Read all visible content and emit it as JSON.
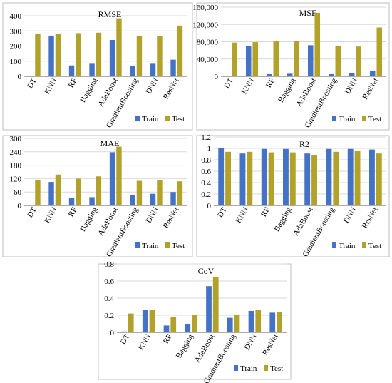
{
  "colors": {
    "train": "#4472C4",
    "test": "#B3A22A",
    "grid": "#d9d9d9",
    "axis": "#595959"
  },
  "legend": {
    "train": "Train",
    "test": "Test"
  },
  "chart_data": [
    {
      "type": "bar",
      "title": "RMSE",
      "categories": [
        "DT",
        "KNN",
        "RF",
        "Bagging",
        "AdaBoost",
        "GradientBoosting",
        "DNN",
        "ResNet"
      ],
      "series": [
        {
          "name": "Train",
          "values": [
            0,
            268,
            72,
            83,
            240,
            68,
            83,
            110
          ]
        },
        {
          "name": "Test",
          "values": [
            280,
            281,
            285,
            288,
            383,
            268,
            265,
            335
          ]
        }
      ],
      "ylim": [
        0,
        400
      ],
      "yticks": [
        "0",
        "100",
        "200",
        "300",
        "400"
      ],
      "grid": true,
      "legend_position": "bottom-right"
    },
    {
      "type": "bar",
      "title": "MSE",
      "categories": [
        "DT",
        "KNN",
        "RF",
        "Bagging",
        "AdaBoost",
        "GradientBoosting",
        "DNN",
        "ResNet"
      ],
      "series": [
        {
          "name": "Train",
          "values": [
            0,
            71000,
            5000,
            6000,
            72000,
            5000,
            7000,
            12000
          ]
        },
        {
          "name": "Test",
          "values": [
            78000,
            79000,
            81000,
            82000,
            147000,
            71000,
            69000,
            113000
          ]
        }
      ],
      "ylim": [
        0,
        160000
      ],
      "yticks": [
        "0",
        "40,000",
        "80,000",
        "120,000",
        "160,000"
      ],
      "grid": true,
      "legend_position": "bottom-right"
    },
    {
      "type": "bar",
      "title": "MAE",
      "categories": [
        "DT",
        "KNN",
        "RF",
        "Bagging",
        "AdaBoost",
        "GradientBoosting",
        "DNN",
        "ResNet"
      ],
      "series": [
        {
          "name": "Train",
          "values": [
            0,
            105,
            33,
            37,
            238,
            46,
            52,
            60
          ]
        },
        {
          "name": "Test",
          "values": [
            115,
            138,
            120,
            130,
            263,
            110,
            112,
            108
          ]
        }
      ],
      "ylim": [
        0,
        300
      ],
      "yticks": [
        "0",
        "60",
        "120",
        "180",
        "240",
        "300"
      ],
      "grid": true,
      "legend_position": "bottom-right"
    },
    {
      "type": "bar",
      "title": "R2",
      "categories": [
        "DT",
        "KNN",
        "RF",
        "Bagging",
        "AdaBoost",
        "GradientBoosting",
        "DNN",
        "ResNet"
      ],
      "series": [
        {
          "name": "Train",
          "values": [
            1.0,
            0.91,
            0.99,
            0.99,
            0.91,
            0.99,
            0.99,
            0.98
          ]
        },
        {
          "name": "Test",
          "values": [
            0.94,
            0.94,
            0.93,
            0.93,
            0.88,
            0.94,
            0.95,
            0.91
          ]
        }
      ],
      "ylim": [
        0,
        1.2
      ],
      "yticks": [
        "0",
        "0.2",
        "0.4",
        "0.6",
        "0.8",
        "1",
        "1.2"
      ],
      "grid": true,
      "legend_position": "bottom-right"
    },
    {
      "type": "bar",
      "title": "CoV",
      "categories": [
        "DT",
        "KNN",
        "RF",
        "Bagging",
        "AdaBoost",
        "GradientBoosting",
        "DNN",
        "ResNet"
      ],
      "series": [
        {
          "name": "Train",
          "values": [
            0.01,
            0.26,
            0.08,
            0.1,
            0.54,
            0.17,
            0.25,
            0.23
          ]
        },
        {
          "name": "Test",
          "values": [
            0.22,
            0.26,
            0.18,
            0.2,
            0.65,
            0.2,
            0.26,
            0.24
          ]
        }
      ],
      "ylim": [
        0,
        0.8
      ],
      "yticks": [
        "0",
        "0.2",
        "0.4",
        "0.6",
        "0.8"
      ],
      "grid": true,
      "legend_position": "bottom-right"
    }
  ]
}
